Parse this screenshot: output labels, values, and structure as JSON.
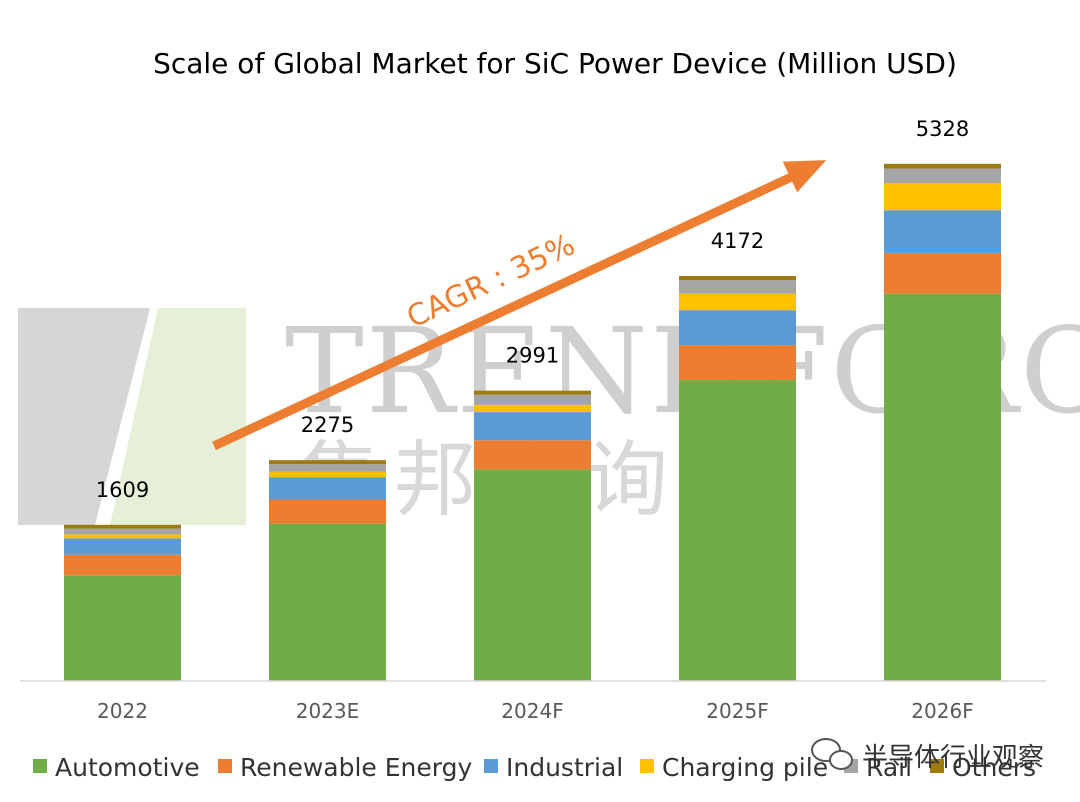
{
  "chart_data": {
    "type": "bar",
    "stacked": true,
    "title": "Scale of Global Market for SiC Power Device (Million USD)",
    "categories": [
      "2022",
      "2023E",
      "2024F",
      "2025F",
      "2026F"
    ],
    "totals": [
      1609,
      2275,
      2991,
      4172,
      5328
    ],
    "series": [
      {
        "name": "Automotive",
        "color": "#70ad47",
        "values": [
          1090,
          1620,
          2180,
          3100,
          3990
        ]
      },
      {
        "name": "Renewable Energy",
        "color": "#ed7d31",
        "values": [
          210,
          250,
          300,
          360,
          420
        ]
      },
      {
        "name": "Industrial",
        "color": "#5b9bd5",
        "values": [
          170,
          230,
          290,
          360,
          440
        ]
      },
      {
        "name": "Charging pile",
        "color": "#ffc000",
        "values": [
          40,
          55,
          75,
          170,
          280
        ]
      },
      {
        "name": "Rail",
        "color": "#a5a5a5",
        "values": [
          60,
          80,
          105,
          140,
          150
        ]
      },
      {
        "name": "Others",
        "color": "#9e7b10",
        "values": [
          39,
          40,
          41,
          42,
          48
        ]
      }
    ],
    "ylim": [
      0,
      5800
    ],
    "grid": false,
    "legend_position": "bottom",
    "annotation": "CAGR : 35%"
  },
  "watermark": {
    "latin": "TRENDFORCE",
    "chinese": "集邦咨询"
  },
  "brand_overlay": "半导体行业观察"
}
